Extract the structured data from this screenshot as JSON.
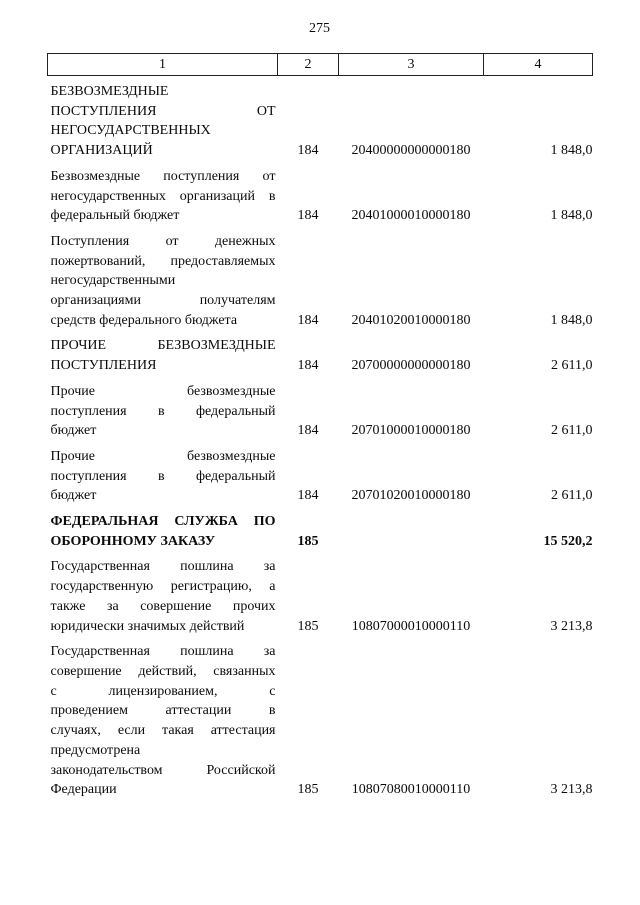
{
  "page": {
    "number": "275"
  },
  "table": {
    "headers": [
      "1",
      "2",
      "3",
      "4"
    ],
    "rows": [
      {
        "name": "БЕЗВОЗМЕЗДНЫЕ ПОСТУПЛЕНИЯ ОТ НЕГОСУДАРСТВЕННЫХ ОРГАНИЗАЦИЙ",
        "name_lines": [
          "БЕЗВОЗМЕЗДНЫЕ",
          "ПОСТУПЛЕНИЯ ОТ",
          "НЕГОСУДАРСТВЕННЫХ",
          "ОРГАНИЗАЦИЙ"
        ],
        "admin_code": "184",
        "budget_code": "20400000000000180",
        "amount": "1 848,0",
        "bold": false
      },
      {
        "name": "Безвозмездные поступления от негосударственных организаций в федеральный бюджет",
        "name_lines": [
          "Безвозмездные поступления от",
          "негосударственных организаций в",
          "федеральный бюджет"
        ],
        "admin_code": "184",
        "budget_code": "20401000010000180",
        "amount": "1 848,0",
        "bold": false
      },
      {
        "name": "Поступления от денежных пожертвований, предоставляемых негосударственными организациями получателям средств федерального бюджета",
        "name_lines": [
          "Поступления от денежных",
          "пожертвований, предоставляемых",
          "негосударственными",
          "организациями получателям",
          "средств федерального бюджета"
        ],
        "admin_code": "184",
        "budget_code": "20401020010000180",
        "amount": "1 848,0",
        "bold": false
      },
      {
        "name": "ПРОЧИЕ БЕЗВОЗМЕЗДНЫЕ ПОСТУПЛЕНИЯ",
        "name_lines": [
          "ПРОЧИЕ БЕЗВОЗМЕЗДНЫЕ",
          "ПОСТУПЛЕНИЯ"
        ],
        "admin_code": "184",
        "budget_code": "20700000000000180",
        "amount": "2 611,0",
        "bold": false
      },
      {
        "name": "Прочие безвозмездные поступления в федеральный бюджет",
        "name_lines": [
          "Прочие безвозмездные",
          "поступления в федеральный",
          "бюджет"
        ],
        "admin_code": "184",
        "budget_code": "20701000010000180",
        "amount": "2 611,0",
        "bold": false
      },
      {
        "name": "Прочие безвозмездные поступления в федеральный бюджет",
        "name_lines": [
          "Прочие безвозмездные",
          "поступления в федеральный",
          "бюджет"
        ],
        "admin_code": "184",
        "budget_code": "20701020010000180",
        "amount": "2 611,0",
        "bold": false
      },
      {
        "name": "ФЕДЕРАЛЬНАЯ СЛУЖБА ПО ОБОРОННОМУ ЗАКАЗУ",
        "name_lines": [
          "ФЕДЕРАЛЬНАЯ СЛУЖБА ПО",
          "ОБОРОННОМУ ЗАКАЗУ"
        ],
        "admin_code": "185",
        "budget_code": "",
        "amount": "15 520,2",
        "bold": true
      },
      {
        "name": "Государственная пошлина за государственную регистрацию, а также за совершение прочих юридически значимых действий",
        "name_lines": [
          "Государственная пошлина за",
          "государственную регистрацию, а",
          "также за совершение прочих",
          "юридически значимых действий"
        ],
        "admin_code": "185",
        "budget_code": "10807000010000110",
        "amount": "3 213,8",
        "bold": false
      },
      {
        "name": "Государственная пошлина за совершение действий, связанных с лицензированием, с проведением аттестации в случаях, если такая аттестация предусмотрена законодательством Российской Федерации",
        "name_lines": [
          "Государственная пошлина за",
          "совершение действий, связанных",
          "с лицензированием, с",
          "проведением аттестации в",
          "случаях, если такая аттестация",
          "предусмотрена",
          "законодательством Российской",
          "Федерации"
        ],
        "admin_code": "185",
        "budget_code": "10807080010000110",
        "amount": "3 213,8",
        "bold": false
      }
    ]
  }
}
